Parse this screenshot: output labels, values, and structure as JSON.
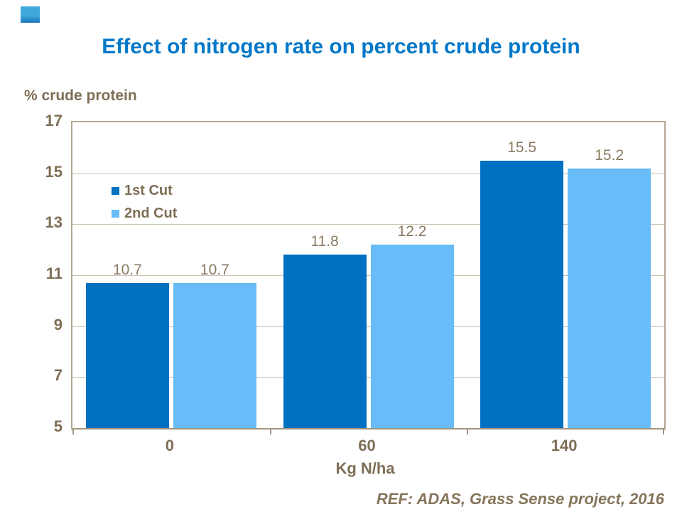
{
  "slide": {
    "title": "Effect of nitrogen rate on percent crude protein",
    "footer": "REF: ADAS, Grass Sense project, 2016"
  },
  "colors": {
    "title_blue": "#0078C9",
    "series1_blue": "#0070C0",
    "series2_blue": "#68BCF7",
    "axis_text_brown": "#7E6E55",
    "data_label_brown": "#8A7A62",
    "gridline_tan": "#CCC2B2",
    "plot_border_tan": "#B3A795",
    "decoration_top": "#3FA9DC",
    "decoration_bottom": "#1B75BC"
  },
  "chart_data": {
    "type": "bar",
    "title": "Effect of nitrogen rate on percent crude protein",
    "categories": [
      "0",
      "60",
      "140"
    ],
    "series": [
      {
        "name": "1st Cut",
        "color": "#0070C0",
        "values": [
          10.7,
          11.8,
          15.5
        ]
      },
      {
        "name": "2nd Cut",
        "color": "#68BCF7",
        "values": [
          10.7,
          12.2,
          15.2
        ]
      }
    ],
    "xlabel": "Kg N/ha",
    "ylabel": "% crude protein",
    "ylim": [
      5,
      17
    ],
    "ytick_step": 2,
    "yticks": [
      5,
      7,
      9,
      11,
      13,
      15,
      17
    ],
    "grid": true,
    "data_labels": true,
    "legend_position": "upper-left-inside",
    "annotation": "REF: ADAS, Grass Sense project, 2016"
  }
}
